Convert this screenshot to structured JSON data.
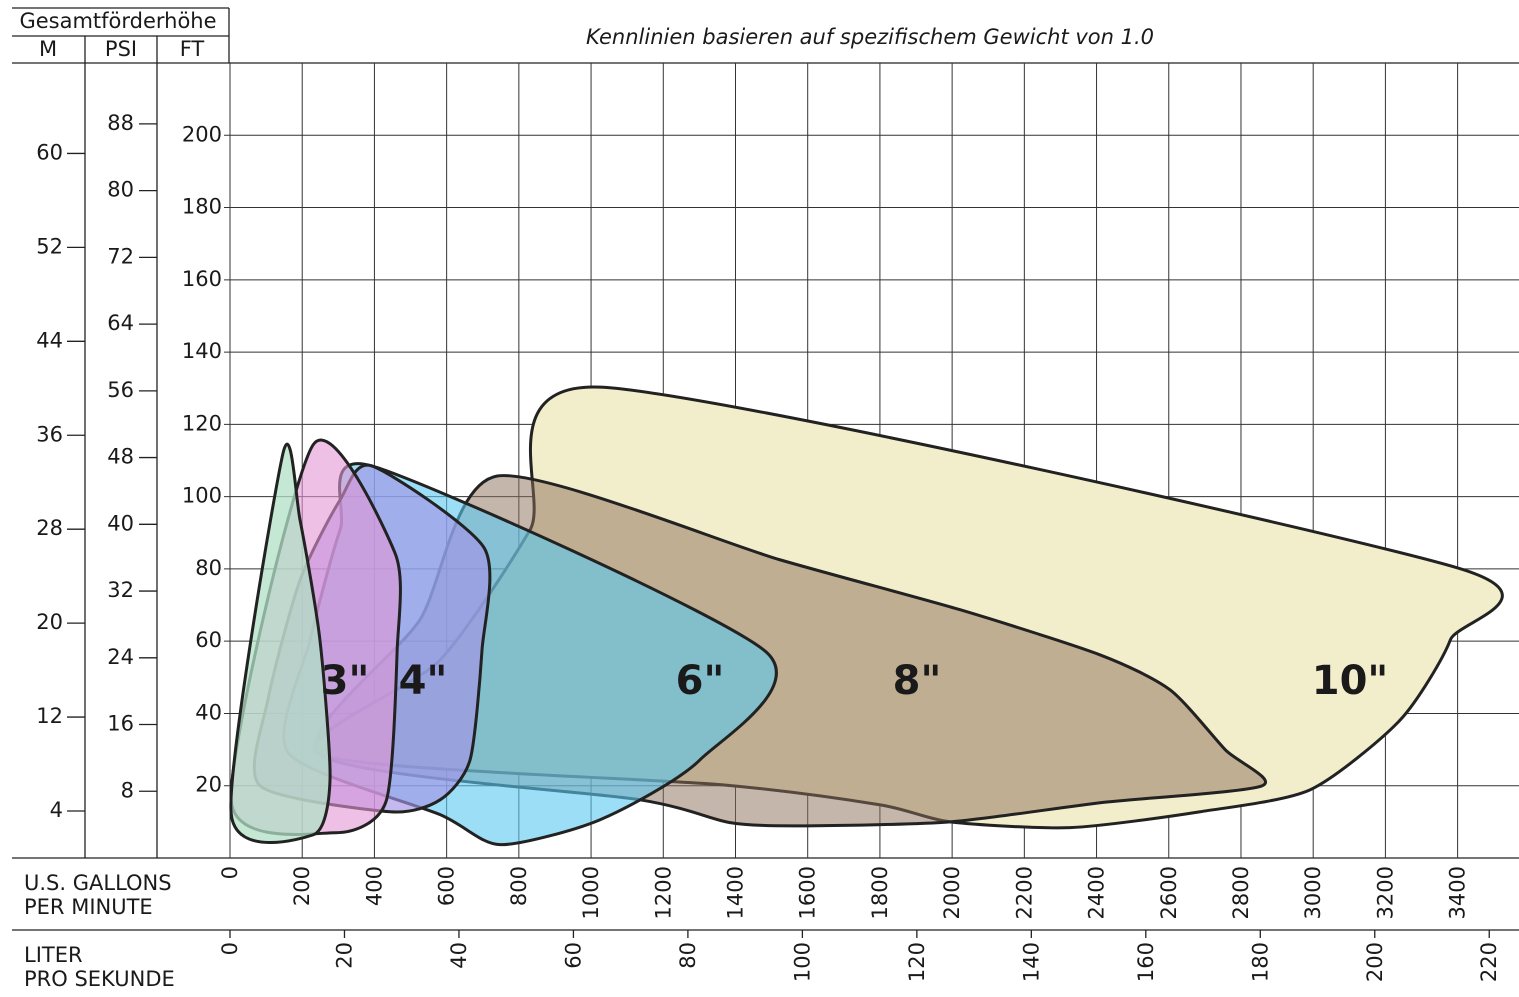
{
  "chart_data": {
    "type": "area",
    "header": "Gesamtförderhöhe",
    "subtitle": "Kennlinien basieren auf spezifischem Gewicht von 1.0",
    "axis_names": {
      "m": "M",
      "psi": "PSI",
      "ft": "FT"
    },
    "x_label": [
      "U.S. GALLONS",
      "PER MINUTE"
    ],
    "x2_label": [
      "LITER",
      "PRO SEKUNDE"
    ],
    "xlim": [
      0,
      3570
    ],
    "xticks": [
      0,
      200,
      400,
      600,
      800,
      1000,
      1200,
      1400,
      1600,
      1800,
      2000,
      2200,
      2400,
      2600,
      2800,
      3000,
      3200,
      3400
    ],
    "x2lim": [
      0,
      225.2
    ],
    "x2ticks": [
      0,
      20,
      40,
      60,
      80,
      100,
      120,
      140,
      160,
      180,
      200,
      220
    ],
    "ylim": [
      0,
      220
    ],
    "yticks": [
      20,
      40,
      60,
      80,
      100,
      120,
      140,
      160,
      180,
      200
    ],
    "ylim_m": [
      0,
      67.7
    ],
    "yticks_m": [
      4,
      12,
      20,
      28,
      36,
      44,
      52,
      60
    ],
    "ylim_psi": [
      0,
      95.3
    ],
    "yticks_psi": [
      8,
      16,
      24,
      32,
      40,
      48,
      56,
      64,
      72,
      80,
      88
    ],
    "grid": true,
    "series": [
      {
        "name": "10\"",
        "color": "#f2eecb",
        "opacity": 1,
        "x": [
          1025,
          3399,
          3380,
          3241,
          2992,
          2687,
          2327,
          1995,
          1801,
          1358,
          249,
          582,
          831
        ],
        "values": [
          130.3,
          80.3,
          60.4,
          38.2,
          18.9,
          12.8,
          8.4,
          10.0,
          14.7,
          20.3,
          28.6,
          54.8,
          90.8
        ]
      },
      {
        "name": "8\"",
        "color": "#8c6e5a",
        "opacity": 0.5,
        "x": [
          740,
          1524,
          2022,
          2410,
          2604,
          2757,
          2859,
          2410,
          1995,
          1579,
          1385,
          1136,
          249,
          526
        ],
        "values": [
          105.7,
          82.5,
          68.7,
          56.2,
          46.5,
          29.9,
          20.0,
          15.3,
          10.0,
          8.9,
          9.8,
          16.1,
          28.6,
          65.9
        ]
      },
      {
        "name": "6\"",
        "color": "#5cc8f2",
        "opacity": 0.6,
        "x": [
          393,
          1485,
          1302,
          1025,
          748,
          582,
          161,
          222,
          305
        ],
        "values": [
          108.5,
          57.0,
          27.2,
          10.6,
          3.7,
          12.0,
          29.1,
          60.4,
          90.8
        ]
      },
      {
        "name": "4\"",
        "color": "#a393e6",
        "opacity": 0.65,
        "x": [
          393,
          704,
          698,
          665,
          582,
          443,
          83,
          105,
          194,
          305
        ],
        "values": [
          108.5,
          85.8,
          57.6,
          27.2,
          16.1,
          12.8,
          20.0,
          43.8,
          76.9,
          99.1
        ]
      },
      {
        "name": "3\"",
        "color": "#e296d6",
        "opacity": 0.6,
        "x": [
          230,
          457,
          463,
          432,
          291,
          3
        ],
        "values": [
          114.3,
          84.4,
          57.6,
          15.6,
          7.0,
          16.1
        ]
      },
      {
        "color": "#b0e0c4",
        "opacity": 0.75,
        "x": [
          147,
          194,
          249,
          277,
          230,
          3
        ],
        "values": [
          112.1,
          93.5,
          60.4,
          21.6,
          6.4,
          12.5
        ]
      }
    ]
  }
}
